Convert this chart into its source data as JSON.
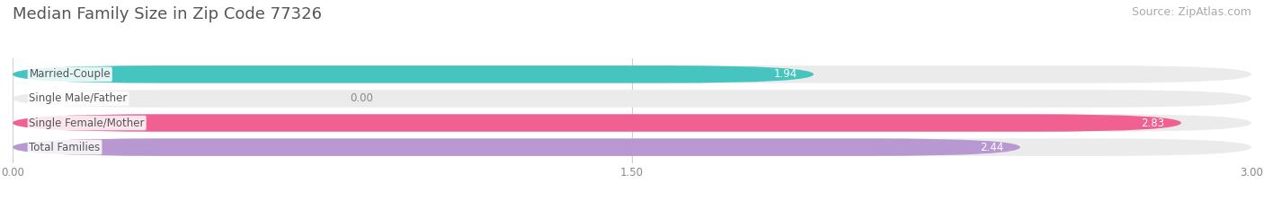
{
  "title": "Median Family Size in Zip Code 77326",
  "source": "Source: ZipAtlas.com",
  "categories": [
    "Married-Couple",
    "Single Male/Father",
    "Single Female/Mother",
    "Total Families"
  ],
  "values": [
    1.94,
    0.0,
    2.83,
    2.44
  ],
  "bar_colors": [
    "#45c4c0",
    "#a0b8e8",
    "#f06090",
    "#b898d0"
  ],
  "bar_bg_color": "#ebebeb",
  "xlim": [
    0,
    3.0
  ],
  "xticks": [
    0.0,
    1.5,
    3.0
  ],
  "title_fontsize": 13,
  "source_fontsize": 9,
  "label_fontsize": 8.5,
  "value_fontsize": 8.5,
  "background_color": "#ffffff",
  "bar_height": 0.72,
  "bar_gap": 1.0
}
